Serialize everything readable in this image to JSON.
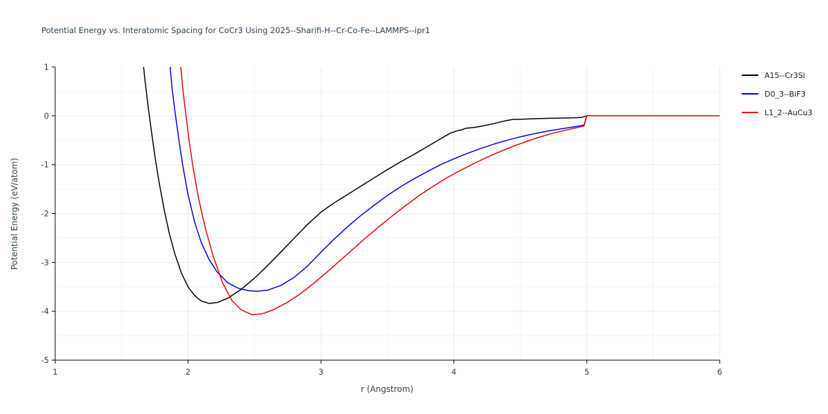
{
  "chart_data": {
    "type": "line",
    "title": "Potential Energy vs. Interatomic Spacing for CoCr3 Using 2025--Sharifi-H--Cr-Co-Fe--LAMMPS--ipr1",
    "xlabel": "r (Angstrom)",
    "ylabel": "Potential Energy (eV/atom)",
    "xlim": [
      1,
      6
    ],
    "ylim": [
      -5,
      1
    ],
    "xticks": [
      1,
      2,
      3,
      4,
      5,
      6
    ],
    "yticks": [
      -5,
      -4,
      -3,
      -2,
      -1,
      0,
      1
    ],
    "grid": true,
    "legend_position": "outside-top-right",
    "background": "#ffffff",
    "series": [
      {
        "name": "A15--Cr3Si",
        "color": "#000000",
        "points": [
          [
            1.665,
            1.0
          ],
          [
            1.68,
            0.62
          ],
          [
            1.7,
            0.18
          ],
          [
            1.72,
            -0.24
          ],
          [
            1.75,
            -0.82
          ],
          [
            1.78,
            -1.33
          ],
          [
            1.82,
            -1.92
          ],
          [
            1.86,
            -2.42
          ],
          [
            1.9,
            -2.82
          ],
          [
            1.95,
            -3.22
          ],
          [
            2.0,
            -3.5
          ],
          [
            2.05,
            -3.68
          ],
          [
            2.1,
            -3.79
          ],
          [
            2.16,
            -3.84
          ],
          [
            2.22,
            -3.82
          ],
          [
            2.3,
            -3.73
          ],
          [
            2.4,
            -3.55
          ],
          [
            2.5,
            -3.32
          ],
          [
            2.6,
            -3.06
          ],
          [
            2.7,
            -2.78
          ],
          [
            2.8,
            -2.5
          ],
          [
            2.9,
            -2.22
          ],
          [
            3.0,
            -1.97
          ],
          [
            3.1,
            -1.78
          ],
          [
            3.2,
            -1.61
          ],
          [
            3.3,
            -1.44
          ],
          [
            3.4,
            -1.27
          ],
          [
            3.5,
            -1.1
          ],
          [
            3.6,
            -0.94
          ],
          [
            3.7,
            -0.79
          ],
          [
            3.8,
            -0.63
          ],
          [
            3.9,
            -0.47
          ],
          [
            3.97,
            -0.36
          ],
          [
            4.02,
            -0.31
          ],
          [
            4.06,
            -0.285
          ],
          [
            4.09,
            -0.255
          ],
          [
            4.11,
            -0.25
          ],
          [
            4.16,
            -0.235
          ],
          [
            4.22,
            -0.205
          ],
          [
            4.3,
            -0.16
          ],
          [
            4.36,
            -0.12
          ],
          [
            4.4,
            -0.095
          ],
          [
            4.44,
            -0.075
          ],
          [
            4.52,
            -0.068
          ],
          [
            4.6,
            -0.06
          ],
          [
            4.7,
            -0.052
          ],
          [
            4.8,
            -0.046
          ],
          [
            4.9,
            -0.04
          ],
          [
            4.96,
            -0.034
          ],
          [
            5.0,
            0.0
          ],
          [
            6.0,
            0.0
          ]
        ]
      },
      {
        "name": "D0_3--BiF3",
        "color": "#0000ee",
        "points": [
          [
            1.865,
            1.0
          ],
          [
            1.88,
            0.55
          ],
          [
            1.9,
            0.12
          ],
          [
            1.93,
            -0.48
          ],
          [
            1.96,
            -1.02
          ],
          [
            2.0,
            -1.62
          ],
          [
            2.05,
            -2.18
          ],
          [
            2.1,
            -2.6
          ],
          [
            2.16,
            -2.95
          ],
          [
            2.22,
            -3.2
          ],
          [
            2.3,
            -3.42
          ],
          [
            2.38,
            -3.53
          ],
          [
            2.46,
            -3.58
          ],
          [
            2.52,
            -3.59
          ],
          [
            2.6,
            -3.565
          ],
          [
            2.7,
            -3.47
          ],
          [
            2.8,
            -3.3
          ],
          [
            2.9,
            -3.07
          ],
          [
            3.0,
            -2.79
          ],
          [
            3.1,
            -2.52
          ],
          [
            3.2,
            -2.27
          ],
          [
            3.3,
            -2.04
          ],
          [
            3.4,
            -1.83
          ],
          [
            3.5,
            -1.63
          ],
          [
            3.6,
            -1.45
          ],
          [
            3.7,
            -1.29
          ],
          [
            3.8,
            -1.14
          ],
          [
            3.9,
            -1.0
          ],
          [
            4.0,
            -0.88
          ],
          [
            4.1,
            -0.77
          ],
          [
            4.2,
            -0.67
          ],
          [
            4.3,
            -0.58
          ],
          [
            4.4,
            -0.5
          ],
          [
            4.5,
            -0.43
          ],
          [
            4.6,
            -0.37
          ],
          [
            4.7,
            -0.315
          ],
          [
            4.8,
            -0.27
          ],
          [
            4.88,
            -0.235
          ],
          [
            4.94,
            -0.21
          ],
          [
            4.98,
            -0.19
          ],
          [
            5.0,
            0.0
          ],
          [
            6.0,
            0.0
          ]
        ]
      },
      {
        "name": "L1_2--AuCu3",
        "color": "#ee0000",
        "points": [
          [
            1.945,
            1.0
          ],
          [
            1.96,
            0.55
          ],
          [
            1.98,
            0.1
          ],
          [
            2.01,
            -0.55
          ],
          [
            2.04,
            -1.1
          ],
          [
            2.08,
            -1.7
          ],
          [
            2.13,
            -2.3
          ],
          [
            2.19,
            -2.88
          ],
          [
            2.26,
            -3.42
          ],
          [
            2.33,
            -3.78
          ],
          [
            2.4,
            -3.97
          ],
          [
            2.48,
            -4.07
          ],
          [
            2.56,
            -4.05
          ],
          [
            2.64,
            -3.97
          ],
          [
            2.74,
            -3.83
          ],
          [
            2.84,
            -3.65
          ],
          [
            2.94,
            -3.44
          ],
          [
            3.04,
            -3.21
          ],
          [
            3.14,
            -2.97
          ],
          [
            3.24,
            -2.73
          ],
          [
            3.34,
            -2.49
          ],
          [
            3.44,
            -2.26
          ],
          [
            3.54,
            -2.04
          ],
          [
            3.64,
            -1.83
          ],
          [
            3.74,
            -1.63
          ],
          [
            3.84,
            -1.45
          ],
          [
            3.94,
            -1.28
          ],
          [
            4.04,
            -1.13
          ],
          [
            4.14,
            -0.99
          ],
          [
            4.24,
            -0.86
          ],
          [
            4.34,
            -0.74
          ],
          [
            4.44,
            -0.63
          ],
          [
            4.54,
            -0.53
          ],
          [
            4.64,
            -0.44
          ],
          [
            4.74,
            -0.36
          ],
          [
            4.84,
            -0.295
          ],
          [
            4.92,
            -0.245
          ],
          [
            4.98,
            -0.21
          ],
          [
            5.0,
            0.0
          ],
          [
            6.0,
            0.0
          ]
        ]
      }
    ]
  }
}
